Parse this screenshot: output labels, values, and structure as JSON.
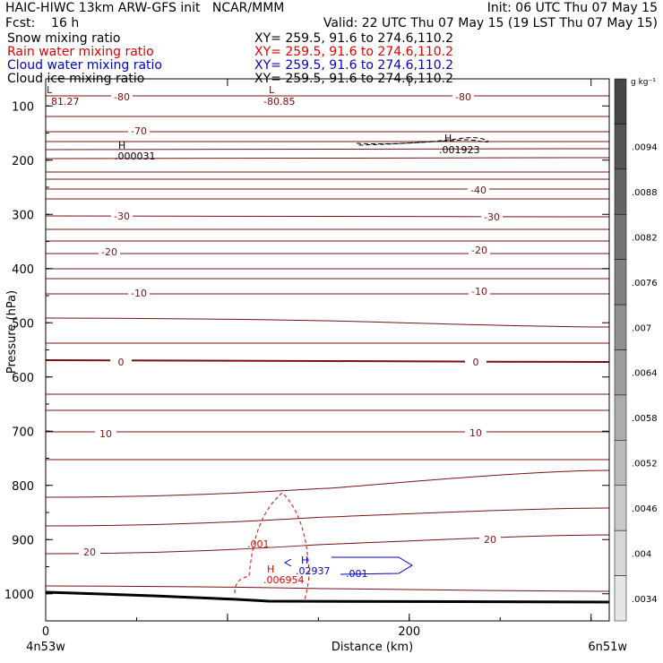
{
  "header": {
    "title_left": "HAIC-HIWC 13km ARW-GFS init   NCAR/MMM",
    "init": "Init: 06 UTC Thu 07 May 15",
    "fcst": "Fcst:    16 h",
    "valid": "Valid: 22 UTC Thu 07 May 15 (19 LST Thu 07 May 15)",
    "fields": [
      {
        "name": "Snow mixing ratio",
        "xy": "XY= 259.5, 91.6 to 274.6,110.2",
        "color": "#000000"
      },
      {
        "name": "Rain water mixing ratio",
        "xy": "XY= 259.5, 91.6 to 274.6,110.2",
        "color": "#e00000"
      },
      {
        "name": "Cloud water mixing ratio",
        "xy": "XY= 259.5, 91.6 to 274.6,110.2",
        "color": "#0000c8"
      },
      {
        "name": "Cloud ice mixing ratio",
        "xy": "XY= 259.5, 91.6 to 274.6,110.2",
        "color": "#000000"
      }
    ]
  },
  "chart_data": {
    "type": "line",
    "ylabel": "Pressure (hPa)",
    "xlabel": "Distance (km)",
    "y_ticks": [
      100,
      200,
      300,
      400,
      500,
      600,
      700,
      800,
      900,
      1000
    ],
    "x_ticks": [
      0,
      200
    ],
    "xlim": [
      0,
      310
    ],
    "ylim": [
      1050,
      50
    ],
    "endpoints": {
      "left": "4n53w",
      "right": "6n51w"
    },
    "colorbar": {
      "unit": "g kg⁻¹",
      "tick_labels": [
        ".0094",
        ".0088",
        ".0082",
        ".0076",
        ".007",
        ".0064",
        ".0058",
        ".0052",
        ".0046",
        ".004",
        ".0034"
      ]
    },
    "temperature_contour_labels": [
      "-80",
      "-80",
      "-70",
      "-40",
      "-30",
      "-30",
      "-20",
      "-20",
      "-10",
      "-10",
      "0",
      "0",
      "10",
      "10",
      "20",
      "20"
    ],
    "annotations": [
      {
        "text": "L",
        "value": "81.27",
        "x": 2,
        "y": 92,
        "color": "#8b0000"
      },
      {
        "text": "L",
        "value": "-80.85",
        "x": 124,
        "y": 92,
        "color": "#8b0000"
      },
      {
        "text": "H",
        "value": ".000031",
        "x": 40,
        "y": 188,
        "color": "#000000"
      },
      {
        "text": "H",
        "value": ".001923",
        "x": 220,
        "y": 182,
        "color": "#000000"
      },
      {
        "text": "H",
        "value": ".006954",
        "x": 120,
        "y": 962,
        "color": "#e00000"
      },
      {
        "text": "H",
        "value": ".02937",
        "x": 140,
        "y": 948,
        "color": "#0000c8"
      }
    ],
    "contour_labels": [
      {
        "value": ".001",
        "x": 111,
        "y": 908,
        "color": "#e00000"
      },
      {
        "value": ".001",
        "x": 172,
        "y": 953,
        "color": "#0000c8"
      }
    ]
  }
}
